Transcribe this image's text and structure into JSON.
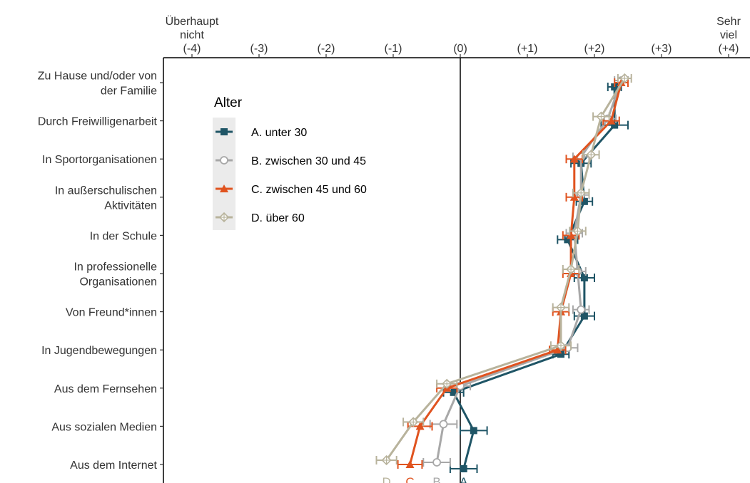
{
  "chart_data": {
    "type": "line",
    "orientation": "horizontal",
    "xlim": [
      -4.3,
      4.3
    ],
    "x_ticks": [
      {
        "value": -4,
        "label": "(-4)",
        "extra": [
          "Überhaupt",
          "nicht"
        ]
      },
      {
        "value": -3,
        "label": "(-3)"
      },
      {
        "value": -2,
        "label": "(-2)"
      },
      {
        "value": -1,
        "label": "(-1)"
      },
      {
        "value": 0,
        "label": "(0)"
      },
      {
        "value": 1,
        "label": "(+1)"
      },
      {
        "value": 2,
        "label": "(+2)"
      },
      {
        "value": 3,
        "label": "(+3)"
      },
      {
        "value": 4,
        "label": "(+4)",
        "extra": [
          "Sehr",
          "viel"
        ]
      }
    ],
    "categories": [
      [
        "Zu Hause und/oder von",
        "der Familie"
      ],
      [
        "Durch Freiwilligenarbeit"
      ],
      [
        "In Sportorganisationen"
      ],
      [
        "In außerschulischen",
        "Aktivitäten"
      ],
      [
        "In der Schule"
      ],
      [
        "In professionelle",
        "Organisationen"
      ],
      [
        "Von Freund*innen"
      ],
      [
        "In Jugendbewegungen"
      ],
      [
        "Aus dem Fernsehen"
      ],
      [
        "Aus sozialen Medien"
      ],
      [
        "Aus dem Internet"
      ]
    ],
    "legend_title": "Alter",
    "legend_position": "top-left inside",
    "grid": false,
    "series": [
      {
        "name": "A. unter 30",
        "end_label": "A",
        "color": "#1f5566",
        "marker": "square",
        "values": [
          2.3,
          2.3,
          1.8,
          1.85,
          1.6,
          1.85,
          1.85,
          1.5,
          -0.1,
          0.2,
          0.05
        ],
        "err": [
          0.1,
          0.2,
          0.15,
          0.12,
          0.15,
          0.15,
          0.15,
          0.12,
          0.15,
          0.2,
          0.2
        ]
      },
      {
        "name": "B. zwischen 30 und 45",
        "end_label": "B",
        "color": "#a8a8a8",
        "marker": "circle-open",
        "values": [
          2.4,
          2.2,
          1.8,
          1.8,
          1.7,
          1.75,
          1.8,
          1.6,
          0.0,
          -0.25,
          -0.35
        ],
        "err": [
          0.1,
          0.12,
          0.12,
          0.12,
          0.12,
          0.12,
          0.12,
          0.15,
          0.15,
          0.2,
          0.2
        ]
      },
      {
        "name": "C. zwischen 45 und 60",
        "end_label": "C",
        "color": "#e0531f",
        "marker": "triangle",
        "values": [
          2.4,
          2.25,
          1.7,
          1.7,
          1.65,
          1.65,
          1.5,
          1.45,
          -0.2,
          -0.6,
          -0.75
        ],
        "err": [
          0.1,
          0.12,
          0.12,
          0.12,
          0.12,
          0.12,
          0.12,
          0.12,
          0.15,
          0.18,
          0.18
        ]
      },
      {
        "name": "D. über 60",
        "end_label": "D",
        "color": "#b8b39c",
        "marker": "diamond-open",
        "values": [
          2.45,
          2.1,
          1.95,
          1.8,
          1.75,
          1.65,
          1.5,
          1.5,
          -0.2,
          -0.7,
          -1.1
        ],
        "err": [
          0.1,
          0.12,
          0.12,
          0.12,
          0.12,
          0.12,
          0.12,
          0.15,
          0.15,
          0.15,
          0.15
        ]
      }
    ]
  }
}
